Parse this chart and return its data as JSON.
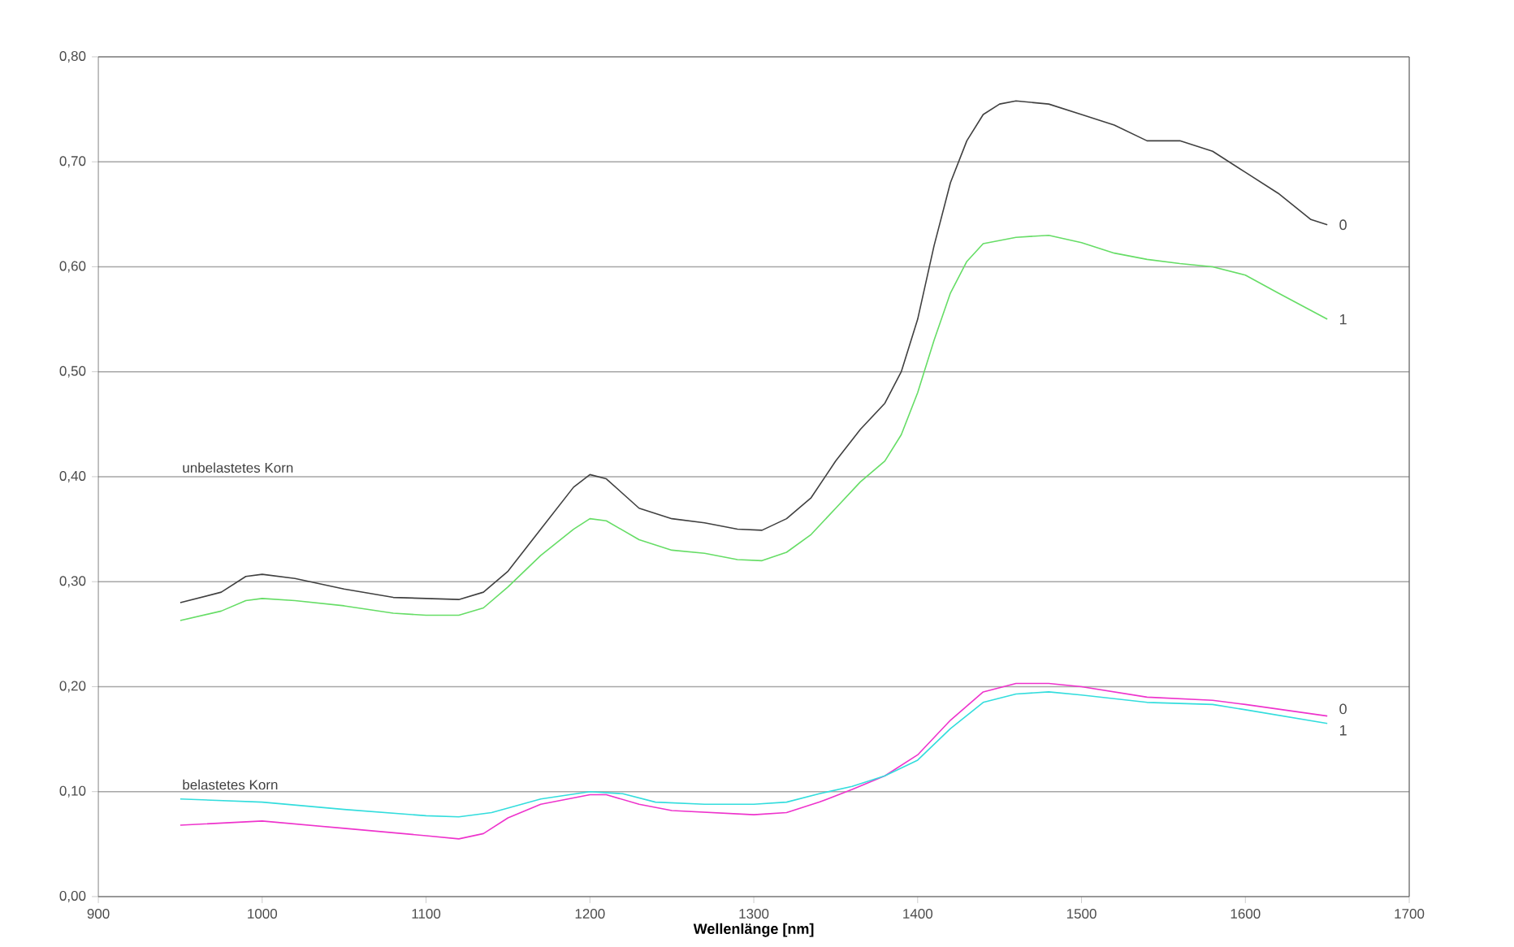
{
  "chart_data": {
    "type": "line",
    "xlabel": "Wellenlänge [nm]",
    "xlim": [
      900,
      1700
    ],
    "xticks": [
      900,
      1000,
      1100,
      1200,
      1300,
      1400,
      1500,
      1600,
      1700
    ],
    "ylim": [
      0,
      0.8
    ],
    "yticks": [
      {
        "value": 0,
        "label": "0,00"
      },
      {
        "value": 0.1,
        "label": "0,10"
      },
      {
        "value": 0.2,
        "label": "0,20"
      },
      {
        "value": 0.3,
        "label": "0,30"
      },
      {
        "value": 0.4,
        "label": "0,40"
      },
      {
        "value": 0.5,
        "label": "0,50"
      },
      {
        "value": 0.6,
        "label": "0,60"
      },
      {
        "value": 0.7,
        "label": "0,70"
      },
      {
        "value": 0.8,
        "label": "0,80"
      }
    ],
    "grid": "y",
    "marker": "none",
    "line_style": "solid",
    "annotations": [
      "unbelastetes Korn",
      "belastetes Korn"
    ],
    "series": [
      {
        "name": "0",
        "color": "#404040",
        "x": [
          950,
          975,
          990,
          1000,
          1020,
          1050,
          1080,
          1100,
          1120,
          1135,
          1150,
          1170,
          1190,
          1200,
          1210,
          1230,
          1250,
          1270,
          1290,
          1305,
          1320,
          1335,
          1350,
          1365,
          1380,
          1390,
          1400,
          1410,
          1420,
          1430,
          1440,
          1450,
          1460,
          1480,
          1500,
          1520,
          1540,
          1560,
          1580,
          1600,
          1620,
          1640,
          1650
        ],
        "values": [
          0.28,
          0.29,
          0.305,
          0.307,
          0.303,
          0.293,
          0.285,
          0.284,
          0.283,
          0.29,
          0.31,
          0.35,
          0.39,
          0.402,
          0.398,
          0.37,
          0.36,
          0.356,
          0.35,
          0.349,
          0.36,
          0.38,
          0.415,
          0.445,
          0.47,
          0.5,
          0.55,
          0.62,
          0.68,
          0.72,
          0.745,
          0.755,
          0.758,
          0.755,
          0.745,
          0.735,
          0.72,
          0.72,
          0.71,
          0.69,
          0.67,
          0.645,
          0.64
        ]
      },
      {
        "name": "1",
        "color": "#66dd66",
        "x": [
          950,
          975,
          990,
          1000,
          1020,
          1050,
          1080,
          1100,
          1120,
          1135,
          1150,
          1170,
          1190,
          1200,
          1210,
          1230,
          1250,
          1270,
          1290,
          1305,
          1320,
          1335,
          1350,
          1365,
          1380,
          1390,
          1400,
          1410,
          1420,
          1430,
          1440,
          1460,
          1480,
          1500,
          1520,
          1540,
          1560,
          1580,
          1600,
          1620,
          1650
        ],
        "values": [
          0.263,
          0.272,
          0.282,
          0.284,
          0.282,
          0.277,
          0.27,
          0.268,
          0.268,
          0.275,
          0.295,
          0.325,
          0.35,
          0.36,
          0.358,
          0.34,
          0.33,
          0.327,
          0.321,
          0.32,
          0.328,
          0.345,
          0.37,
          0.395,
          0.415,
          0.44,
          0.48,
          0.53,
          0.575,
          0.605,
          0.622,
          0.628,
          0.63,
          0.623,
          0.613,
          0.607,
          0.603,
          0.6,
          0.592,
          0.575,
          0.55
        ]
      },
      {
        "name": "0",
        "color": "#ee33cc",
        "x": [
          950,
          1000,
          1050,
          1100,
          1120,
          1135,
          1150,
          1170,
          1200,
          1210,
          1230,
          1250,
          1300,
          1320,
          1340,
          1360,
          1380,
          1400,
          1420,
          1440,
          1460,
          1480,
          1500,
          1540,
          1580,
          1600,
          1650
        ],
        "values": [
          0.068,
          0.072,
          0.065,
          0.058,
          0.055,
          0.06,
          0.075,
          0.088,
          0.097,
          0.097,
          0.088,
          0.082,
          0.078,
          0.08,
          0.09,
          0.102,
          0.115,
          0.135,
          0.168,
          0.195,
          0.203,
          0.203,
          0.2,
          0.19,
          0.187,
          0.183,
          0.172
        ]
      },
      {
        "name": "1",
        "color": "#33dddd",
        "x": [
          950,
          1000,
          1050,
          1100,
          1120,
          1140,
          1170,
          1200,
          1220,
          1240,
          1270,
          1300,
          1320,
          1340,
          1360,
          1380,
          1400,
          1420,
          1440,
          1460,
          1480,
          1500,
          1540,
          1580,
          1600,
          1650
        ],
        "values": [
          0.093,
          0.09,
          0.083,
          0.077,
          0.076,
          0.08,
          0.093,
          0.1,
          0.098,
          0.09,
          0.088,
          0.088,
          0.09,
          0.098,
          0.105,
          0.115,
          0.13,
          0.16,
          0.185,
          0.193,
          0.195,
          0.192,
          0.185,
          0.183,
          0.178,
          0.165
        ]
      }
    ]
  }
}
